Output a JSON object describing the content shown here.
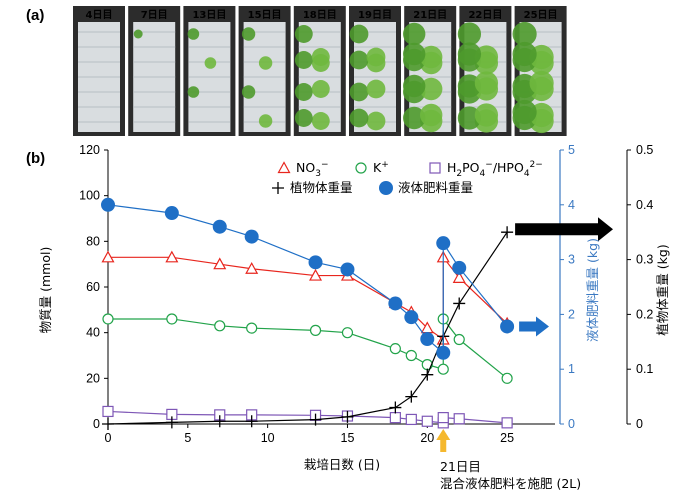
{
  "panel_a": {
    "label": "(a)",
    "photos": [
      "4日目",
      "7日目",
      "13日目",
      "15日目",
      "18日目",
      "19日目",
      "21日目",
      "22日目",
      "25日目"
    ],
    "photo_greenness": [
      0.0,
      0.05,
      0.2,
      0.3,
      0.55,
      0.6,
      0.8,
      0.85,
      0.9
    ]
  },
  "panel_b": {
    "label": "(b)"
  },
  "chart_data": {
    "type": "line",
    "xlabel": "栽培日数 (日)",
    "x_ticks": [
      0,
      5,
      10,
      15,
      20,
      25
    ],
    "xlim": [
      0,
      28
    ],
    "y_left": {
      "label": "物質量 (mmol)",
      "lim": [
        0,
        120
      ],
      "ticks": [
        0,
        20,
        40,
        60,
        80,
        100,
        120
      ]
    },
    "y_right_blue": {
      "label": "液体肥料重量 (kg)",
      "lim": [
        0,
        5
      ],
      "ticks": [
        0,
        1,
        2,
        3,
        4,
        5
      ],
      "color": "#3b79c2"
    },
    "y_right_black": {
      "label": "植物体重量 (kg)",
      "lim": [
        0,
        0.5
      ],
      "ticks": [
        0,
        0.1,
        0.2,
        0.3,
        0.4,
        0.5
      ]
    },
    "series": [
      {
        "name_parts": [
          "NO",
          "3",
          "−"
        ],
        "marker": "triangle",
        "color": "#e8261e",
        "axis": "left",
        "x": [
          0,
          4,
          7,
          9,
          13,
          15,
          18,
          19,
          20,
          21,
          21,
          22,
          25
        ],
        "y": [
          73,
          73,
          70,
          68,
          65,
          65,
          53,
          49,
          42,
          37,
          73,
          64,
          44
        ]
      },
      {
        "name_parts": [
          "K",
          "+"
        ],
        "marker": "circle-open",
        "color": "#22a34a",
        "axis": "left",
        "x": [
          0,
          4,
          7,
          9,
          13,
          15,
          18,
          19,
          20,
          21,
          21,
          22,
          25
        ],
        "y": [
          46,
          46,
          43,
          42,
          41,
          40,
          33,
          30,
          26,
          24,
          46,
          37,
          20
        ]
      },
      {
        "name_parts": [
          "H",
          "2",
          "PO",
          "4",
          "−",
          "/HPO",
          "4",
          "2−"
        ],
        "marker": "square-open",
        "color": "#7e57b6",
        "axis": "left",
        "x": [
          0,
          4,
          7,
          9,
          13,
          15,
          18,
          19,
          20,
          21,
          21,
          22,
          25
        ],
        "y": [
          5.5,
          4.2,
          4.0,
          4.0,
          3.8,
          3.5,
          2.8,
          2.0,
          1.2,
          0.5,
          2.8,
          2.3,
          0.5
        ]
      },
      {
        "name": "植物体重量",
        "marker": "plus",
        "color": "#000000",
        "axis": "right_black",
        "x": [
          0,
          4,
          7,
          9,
          13,
          15,
          18,
          19,
          20,
          21,
          22,
          25
        ],
        "y": [
          0.0,
          0.003,
          0.005,
          0.005,
          0.008,
          0.013,
          0.03,
          0.05,
          0.09,
          0.16,
          0.22,
          0.35
        ]
      },
      {
        "name": "液体肥料重量",
        "marker": "circle-filled",
        "color": "#1f6fc6",
        "axis": "right_blue",
        "x": [
          0,
          4,
          7,
          9,
          13,
          15,
          18,
          19,
          20,
          21,
          21,
          22,
          25
        ],
        "y": [
          4.0,
          3.85,
          3.6,
          3.42,
          2.95,
          2.82,
          2.2,
          1.95,
          1.55,
          1.3,
          3.3,
          2.85,
          1.78
        ]
      }
    ],
    "annotations": {
      "day21": "21日目",
      "day21_note": "混合液体肥料を施肥 (2L)",
      "arrow_black": "black-right-arrow",
      "arrow_blue": "blue-right-arrow",
      "arrow_day21": "orange-up-arrow",
      "arrow_day21_color": "#f5b82e"
    }
  }
}
